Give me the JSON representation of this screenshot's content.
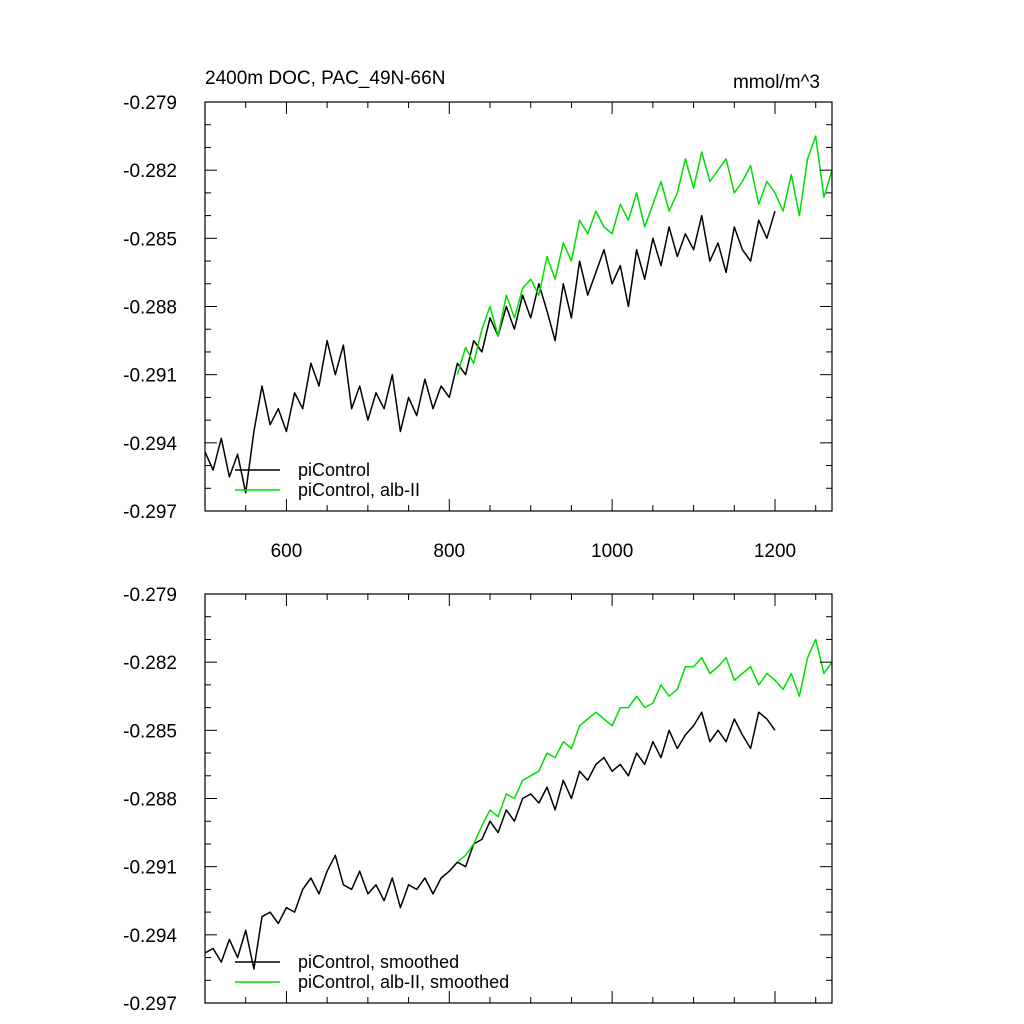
{
  "colors": {
    "piControl": "#000000",
    "alb_II": "#00dd00"
  },
  "chart_data": [
    {
      "type": "line",
      "title": "2400m DOC, PAC_49N-66N",
      "units": "mmol/m^3",
      "xlim": [
        500,
        1270
      ],
      "ylim": [
        -0.297,
        -0.279
      ],
      "x_ticks": [
        600,
        800,
        1000,
        1200
      ],
      "x_tick_labels": [
        "600",
        "800",
        "1000",
        "1200"
      ],
      "y_ticks": [
        -0.279,
        -0.282,
        -0.285,
        -0.288,
        -0.291,
        -0.294,
        -0.297
      ],
      "y_tick_labels": [
        "-0.279",
        "-0.282",
        "-0.285",
        "-0.288",
        "-0.291",
        "-0.294",
        "-0.297"
      ],
      "legend_position": "bottom-left",
      "series": [
        {
          "name": "piControl",
          "color": "#000000",
          "x": [
            500,
            510,
            520,
            530,
            540,
            550,
            560,
            570,
            580,
            590,
            600,
            610,
            620,
            630,
            640,
            650,
            660,
            670,
            680,
            690,
            700,
            710,
            720,
            730,
            740,
            750,
            760,
            770,
            780,
            790,
            800,
            810,
            820,
            830,
            840,
            850,
            860,
            870,
            880,
            890,
            900,
            910,
            920,
            930,
            940,
            950,
            960,
            970,
            980,
            990,
            1000,
            1010,
            1020,
            1030,
            1040,
            1050,
            1060,
            1070,
            1080,
            1090,
            1100,
            1110,
            1120,
            1130,
            1140,
            1150,
            1160,
            1170,
            1180,
            1190,
            1200
          ],
          "y": [
            -0.2944,
            -0.2952,
            -0.2938,
            -0.2955,
            -0.2945,
            -0.2962,
            -0.2935,
            -0.2915,
            -0.2932,
            -0.2925,
            -0.2935,
            -0.2918,
            -0.2925,
            -0.2905,
            -0.2915,
            -0.2895,
            -0.291,
            -0.2897,
            -0.2925,
            -0.2915,
            -0.293,
            -0.2918,
            -0.2925,
            -0.291,
            -0.2935,
            -0.292,
            -0.2928,
            -0.2912,
            -0.2925,
            -0.2915,
            -0.292,
            -0.2905,
            -0.291,
            -0.2895,
            -0.29,
            -0.2885,
            -0.2893,
            -0.288,
            -0.289,
            -0.2875,
            -0.2885,
            -0.287,
            -0.2882,
            -0.2895,
            -0.287,
            -0.2885,
            -0.286,
            -0.2875,
            -0.2865,
            -0.2855,
            -0.287,
            -0.2862,
            -0.288,
            -0.2855,
            -0.2868,
            -0.285,
            -0.2862,
            -0.2845,
            -0.2858,
            -0.2848,
            -0.2855,
            -0.284,
            -0.286,
            -0.2852,
            -0.2865,
            -0.2845,
            -0.2855,
            -0.286,
            -0.2842,
            -0.285,
            -0.2838
          ]
        },
        {
          "name": "piControl, alb-II",
          "color": "#00dd00",
          "x": [
            810,
            820,
            830,
            840,
            850,
            860,
            870,
            880,
            890,
            900,
            910,
            920,
            930,
            940,
            950,
            960,
            970,
            980,
            990,
            1000,
            1010,
            1020,
            1030,
            1040,
            1050,
            1060,
            1070,
            1080,
            1090,
            1100,
            1110,
            1120,
            1130,
            1140,
            1150,
            1160,
            1170,
            1180,
            1190,
            1200,
            1210,
            1220,
            1230,
            1240,
            1250,
            1260,
            1270
          ],
          "y": [
            -0.291,
            -0.2898,
            -0.2905,
            -0.289,
            -0.288,
            -0.2893,
            -0.2875,
            -0.2885,
            -0.2872,
            -0.2868,
            -0.2875,
            -0.2858,
            -0.2868,
            -0.2852,
            -0.286,
            -0.2842,
            -0.2848,
            -0.2838,
            -0.2845,
            -0.2848,
            -0.2835,
            -0.2842,
            -0.283,
            -0.2845,
            -0.2835,
            -0.2825,
            -0.2838,
            -0.283,
            -0.2815,
            -0.2828,
            -0.2812,
            -0.2825,
            -0.282,
            -0.2815,
            -0.283,
            -0.2825,
            -0.2818,
            -0.2835,
            -0.2825,
            -0.283,
            -0.2838,
            -0.2822,
            -0.284,
            -0.2815,
            -0.2805,
            -0.2832,
            -0.282
          ]
        }
      ]
    },
    {
      "type": "line",
      "title": "",
      "units": "",
      "xlim": [
        500,
        1270
      ],
      "ylim": [
        -0.297,
        -0.279
      ],
      "x_ticks": [
        600,
        800,
        1000,
        1200
      ],
      "x_tick_labels": [],
      "y_ticks": [
        -0.279,
        -0.282,
        -0.285,
        -0.288,
        -0.291,
        -0.294,
        -0.297
      ],
      "y_tick_labels": [
        "-0.279",
        "-0.282",
        "-0.285",
        "-0.288",
        "-0.291",
        "-0.294",
        "-0.297"
      ],
      "legend_position": "bottom-left",
      "series": [
        {
          "name": "piControl, smoothed",
          "color": "#000000",
          "x": [
            500,
            510,
            520,
            530,
            540,
            550,
            560,
            570,
            580,
            590,
            600,
            610,
            620,
            630,
            640,
            650,
            660,
            670,
            680,
            690,
            700,
            710,
            720,
            730,
            740,
            750,
            760,
            770,
            780,
            790,
            800,
            810,
            820,
            830,
            840,
            850,
            860,
            870,
            880,
            890,
            900,
            910,
            920,
            930,
            940,
            950,
            960,
            970,
            980,
            990,
            1000,
            1010,
            1020,
            1030,
            1040,
            1050,
            1060,
            1070,
            1080,
            1090,
            1100,
            1110,
            1120,
            1130,
            1140,
            1150,
            1160,
            1170,
            1180,
            1190,
            1200
          ],
          "y": [
            -0.2948,
            -0.2946,
            -0.2952,
            -0.2942,
            -0.295,
            -0.2938,
            -0.2955,
            -0.2932,
            -0.293,
            -0.2935,
            -0.2928,
            -0.293,
            -0.292,
            -0.2915,
            -0.2922,
            -0.2912,
            -0.2905,
            -0.2918,
            -0.292,
            -0.2912,
            -0.2922,
            -0.2918,
            -0.2925,
            -0.2915,
            -0.2928,
            -0.2918,
            -0.292,
            -0.2915,
            -0.2922,
            -0.2915,
            -0.2912,
            -0.2908,
            -0.291,
            -0.29,
            -0.2898,
            -0.289,
            -0.2895,
            -0.2885,
            -0.289,
            -0.288,
            -0.2878,
            -0.2882,
            -0.2875,
            -0.2885,
            -0.2872,
            -0.288,
            -0.2868,
            -0.2872,
            -0.2865,
            -0.2862,
            -0.2868,
            -0.2865,
            -0.287,
            -0.286,
            -0.2865,
            -0.2855,
            -0.2862,
            -0.285,
            -0.2858,
            -0.2852,
            -0.2848,
            -0.2842,
            -0.2855,
            -0.285,
            -0.2855,
            -0.2845,
            -0.2852,
            -0.2858,
            -0.2842,
            -0.2845,
            -0.285
          ]
        },
        {
          "name": "piControl, alb-II, smoothed",
          "color": "#00dd00",
          "x": [
            810,
            820,
            830,
            840,
            850,
            860,
            870,
            880,
            890,
            900,
            910,
            920,
            930,
            940,
            950,
            960,
            970,
            980,
            990,
            1000,
            1010,
            1020,
            1030,
            1040,
            1050,
            1060,
            1070,
            1080,
            1090,
            1100,
            1110,
            1120,
            1130,
            1140,
            1150,
            1160,
            1170,
            1180,
            1190,
            1200,
            1210,
            1220,
            1230,
            1240,
            1250,
            1260,
            1270
          ],
          "y": [
            -0.2908,
            -0.2905,
            -0.29,
            -0.2892,
            -0.2885,
            -0.2888,
            -0.2878,
            -0.288,
            -0.2872,
            -0.287,
            -0.2868,
            -0.286,
            -0.2862,
            -0.2855,
            -0.2858,
            -0.2848,
            -0.2845,
            -0.2842,
            -0.2845,
            -0.2848,
            -0.284,
            -0.284,
            -0.2835,
            -0.284,
            -0.2838,
            -0.283,
            -0.2835,
            -0.2832,
            -0.2822,
            -0.2822,
            -0.2818,
            -0.2825,
            -0.2822,
            -0.2818,
            -0.2828,
            -0.2825,
            -0.2822,
            -0.283,
            -0.2825,
            -0.2828,
            -0.2832,
            -0.2825,
            -0.2835,
            -0.2818,
            -0.281,
            -0.2825,
            -0.282
          ]
        }
      ]
    }
  ]
}
